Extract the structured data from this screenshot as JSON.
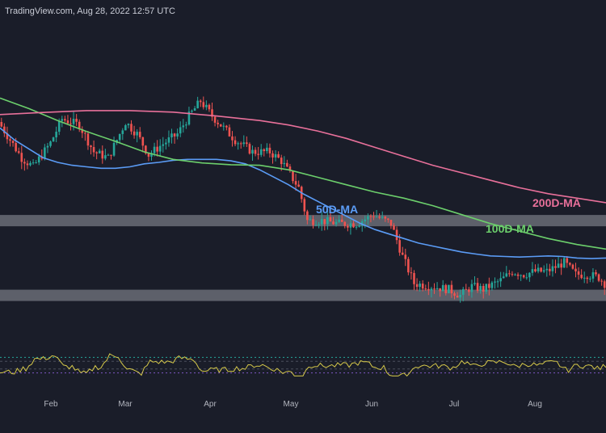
{
  "header": {
    "source_text": "TradingView.com, Aug 28, 2022 12:57 UTC"
  },
  "colors": {
    "background": "#1a1d29",
    "candle_up": "#26a69a",
    "candle_down": "#ef5350",
    "ma50": "#5b9cf6",
    "ma100": "#6ccf6c",
    "ma200": "#e8709a",
    "zone": "#9598a1",
    "rsi_line": "#d6c94a",
    "rsi_bands": "#7e57c2",
    "rsi_levels": "#26a69a"
  },
  "chart_data": {
    "type": "candlestick",
    "price_axis_shown": false,
    "x_axis": {
      "tick_labels": [
        "Feb",
        "Mar",
        "Apr",
        "May",
        "Jun",
        "Jul",
        "Aug"
      ]
    },
    "moving_averages": [
      {
        "name": "50D-MA",
        "color": "#5b9cf6",
        "points": [
          [
            0,
            0.68
          ],
          [
            5,
            0.64
          ],
          [
            10,
            0.61
          ],
          [
            15,
            0.58
          ],
          [
            20,
            0.565
          ],
          [
            25,
            0.555
          ],
          [
            30,
            0.55
          ],
          [
            35,
            0.545
          ],
          [
            40,
            0.545
          ],
          [
            45,
            0.55
          ],
          [
            50,
            0.56
          ],
          [
            55,
            0.565
          ],
          [
            60,
            0.572
          ],
          [
            65,
            0.575
          ],
          [
            70,
            0.575
          ],
          [
            75,
            0.575
          ],
          [
            80,
            0.57
          ],
          [
            85,
            0.56
          ],
          [
            90,
            0.54
          ],
          [
            95,
            0.515
          ],
          [
            100,
            0.49
          ],
          [
            105,
            0.46
          ],
          [
            110,
            0.435
          ],
          [
            115,
            0.41
          ],
          [
            120,
            0.385
          ],
          [
            125,
            0.36
          ],
          [
            130,
            0.34
          ],
          [
            135,
            0.325
          ],
          [
            140,
            0.31
          ],
          [
            145,
            0.295
          ],
          [
            150,
            0.285
          ],
          [
            155,
            0.275
          ],
          [
            160,
            0.265
          ],
          [
            165,
            0.258
          ],
          [
            170,
            0.252
          ],
          [
            175,
            0.25
          ],
          [
            180,
            0.248
          ],
          [
            185,
            0.25
          ],
          [
            190,
            0.252
          ],
          [
            195,
            0.25
          ],
          [
            200,
            0.245
          ],
          [
            205,
            0.243
          ],
          [
            210,
            0.245
          ]
        ]
      },
      {
        "name": "100D-MA",
        "color": "#6ccf6c",
        "points": [
          [
            0,
            0.78
          ],
          [
            10,
            0.745
          ],
          [
            20,
            0.705
          ],
          [
            30,
            0.668
          ],
          [
            40,
            0.635
          ],
          [
            50,
            0.6
          ],
          [
            60,
            0.575
          ],
          [
            70,
            0.563
          ],
          [
            80,
            0.557
          ],
          [
            90,
            0.555
          ],
          [
            100,
            0.54
          ],
          [
            110,
            0.515
          ],
          [
            120,
            0.49
          ],
          [
            130,
            0.465
          ],
          [
            140,
            0.445
          ],
          [
            150,
            0.42
          ],
          [
            160,
            0.39
          ],
          [
            170,
            0.36
          ],
          [
            180,
            0.335
          ],
          [
            190,
            0.31
          ],
          [
            200,
            0.29
          ],
          [
            210,
            0.275
          ]
        ]
      },
      {
        "name": "200D-MA",
        "color": "#e8709a",
        "points": [
          [
            0,
            0.725
          ],
          [
            15,
            0.732
          ],
          [
            30,
            0.738
          ],
          [
            45,
            0.738
          ],
          [
            60,
            0.733
          ],
          [
            75,
            0.72
          ],
          [
            90,
            0.705
          ],
          [
            100,
            0.69
          ],
          [
            110,
            0.67
          ],
          [
            120,
            0.645
          ],
          [
            130,
            0.615
          ],
          [
            140,
            0.585
          ],
          [
            150,
            0.555
          ],
          [
            160,
            0.53
          ],
          [
            170,
            0.505
          ],
          [
            180,
            0.48
          ],
          [
            190,
            0.46
          ],
          [
            200,
            0.445
          ],
          [
            210,
            0.43
          ]
        ]
      }
    ],
    "horizontal_zones": [
      {
        "level": 0.37
      },
      {
        "level": 0.12
      }
    ],
    "rsi": {
      "upper_band": 70,
      "lower_band": 30,
      "levels": [
        60,
        40
      ]
    }
  }
}
